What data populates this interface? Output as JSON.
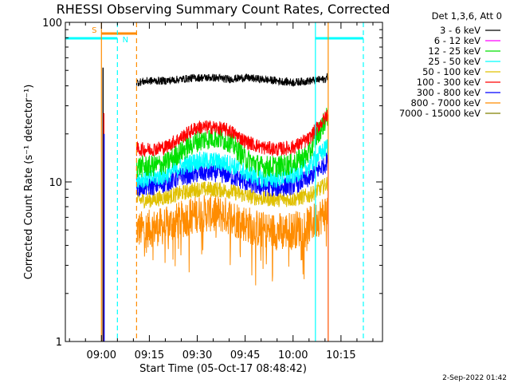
{
  "chart_data": {
    "type": "line",
    "title": "RHESSI Observing Summary Count Rates, Corrected",
    "xlabel": "Start Time (05-Oct-17 08:48:42)",
    "ylabel": "Corrected Count Rate (s⁻¹ detector⁻¹)",
    "yscale": "log",
    "ylim": [
      1,
      100
    ],
    "y_ticks": [
      {
        "value": 1,
        "label": "1"
      },
      {
        "value": 10,
        "label": "10"
      },
      {
        "value": 100,
        "label": "100"
      }
    ],
    "xlim": [
      "08:48:42",
      "10:28:00"
    ],
    "x_ticks": [
      {
        "time": "09:00",
        "label": "09:00"
      },
      {
        "time": "09:15",
        "label": "09:15"
      },
      {
        "time": "09:30",
        "label": "09:30"
      },
      {
        "time": "09:45",
        "label": "09:45"
      },
      {
        "time": "10:00",
        "label": "10:00"
      },
      {
        "time": "10:15",
        "label": "10:15"
      }
    ],
    "grid": false,
    "legend_header": "Det 1,3,6, Att 0",
    "legend_position": "top-right outside plot",
    "data_gap": {
      "start": "09:02",
      "end": "09:11"
    },
    "series": [
      {
        "name": "3 - 6 keV",
        "color": "#000000",
        "start": "09:11",
        "end": "10:11",
        "times": [
          "09:11",
          "09:15",
          "09:20",
          "09:25",
          "09:30",
          "09:35",
          "09:40",
          "09:45",
          "09:50",
          "09:55",
          "10:00",
          "10:05",
          "10:10",
          "10:11"
        ],
        "values": [
          42,
          43,
          43,
          44,
          45,
          45,
          44,
          45,
          44,
          43,
          42,
          43,
          44,
          46
        ]
      },
      {
        "name": "6 - 12 keV",
        "color": "#ff00ff",
        "start": "09:11",
        "end": "10:11",
        "times": [
          "09:11",
          "09:20",
          "09:30",
          "09:40",
          "09:50",
          "10:00",
          "10:10"
        ],
        "values": [
          0,
          0,
          0,
          0,
          0,
          0,
          0
        ]
      },
      {
        "name": "12 - 25 keV",
        "color": "#00e000",
        "start": "09:11",
        "end": "10:11",
        "times": [
          "09:11",
          "09:15",
          "09:20",
          "09:25",
          "09:30",
          "09:35",
          "09:40",
          "09:45",
          "09:50",
          "09:55",
          "10:00",
          "10:05",
          "10:10",
          "10:11"
        ],
        "values": [
          12.5,
          12.5,
          13,
          15.5,
          18,
          19,
          18,
          14,
          12.5,
          12.5,
          13,
          15,
          24,
          26
        ]
      },
      {
        "name": "25 - 50 keV",
        "color": "#00ffff",
        "start": "09:11",
        "end": "10:11",
        "times": [
          "09:11",
          "09:15",
          "09:20",
          "09:25",
          "09:30",
          "09:35",
          "09:40",
          "09:45",
          "09:50",
          "09:55",
          "10:00",
          "10:05",
          "10:10",
          "10:11"
        ],
        "values": [
          10.5,
          10.5,
          11,
          12.5,
          13.5,
          13.5,
          13,
          11.5,
          10.5,
          10.5,
          11,
          12.5,
          16,
          17
        ]
      },
      {
        "name": "50 - 100 keV",
        "color": "#e0c000",
        "start": "09:11",
        "end": "10:11",
        "times": [
          "09:11",
          "09:15",
          "09:20",
          "09:25",
          "09:30",
          "09:35",
          "09:40",
          "09:45",
          "09:50",
          "09:55",
          "10:00",
          "10:05",
          "10:10",
          "10:11"
        ],
        "values": [
          7.7,
          7.7,
          8,
          8.5,
          9,
          9,
          8.8,
          8.2,
          7.9,
          7.8,
          7.8,
          8.2,
          9.5,
          10
        ]
      },
      {
        "name": "100 - 300 keV",
        "color": "#ff0000",
        "start": "09:11",
        "end": "10:11",
        "times": [
          "09:11",
          "09:15",
          "09:20",
          "09:25",
          "09:30",
          "09:35",
          "09:40",
          "09:45",
          "09:50",
          "09:55",
          "10:00",
          "10:05",
          "10:10",
          "10:11"
        ],
        "values": [
          16,
          16,
          16.5,
          19,
          22,
          22,
          21,
          18,
          16.5,
          16,
          16.5,
          18.5,
          25,
          27
        ]
      },
      {
        "name": "300 - 800 keV",
        "color": "#0000ff",
        "start": "09:11",
        "end": "10:11",
        "times": [
          "09:11",
          "09:15",
          "09:20",
          "09:25",
          "09:30",
          "09:35",
          "09:40",
          "09:45",
          "09:50",
          "09:55",
          "10:00",
          "10:05",
          "10:10",
          "10:11"
        ],
        "values": [
          9.3,
          9.3,
          9.8,
          10.8,
          11.3,
          11.5,
          11,
          10,
          9.3,
          9.2,
          9.5,
          10.5,
          13,
          14
        ]
      },
      {
        "name": "800 - 7000 keV",
        "color": "#ff8c00",
        "start": "09:11",
        "end": "10:11",
        "times": [
          "09:11",
          "09:15",
          "09:20",
          "09:25",
          "09:30",
          "09:35",
          "09:40",
          "09:45",
          "09:50",
          "09:55",
          "10:00",
          "10:05",
          "10:10",
          "10:11"
        ],
        "values": [
          5,
          5.1,
          5.3,
          5.8,
          6.3,
          6.4,
          6.1,
          5.5,
          5,
          4.9,
          5,
          5.3,
          6.4,
          6.8
        ]
      },
      {
        "name": "7000 - 15000 keV",
        "color": "#808000",
        "start": "09:11",
        "end": "10:11",
        "times": [
          "09:11",
          "09:20",
          "09:30",
          "09:40",
          "09:50",
          "10:00",
          "10:10"
        ],
        "values": [
          0,
          0,
          0,
          0,
          0,
          0,
          0
        ]
      }
    ],
    "annotations": [
      {
        "kind": "saa-bar",
        "label": "S",
        "color": "#ff8c00",
        "start": "09:00",
        "end": "09:11"
      },
      {
        "kind": "night-bar",
        "label": "N",
        "color": "#00ffff",
        "start": "08:48:42",
        "end": "09:05"
      },
      {
        "kind": "night-bar",
        "label": "",
        "color": "#00ffff",
        "start": "10:07",
        "end": "10:22"
      },
      {
        "kind": "vline-solid",
        "color": "#ff8c00",
        "time": "09:00"
      },
      {
        "kind": "vline-dashed",
        "color": "#00ffff",
        "time": "09:05"
      },
      {
        "kind": "vline-dashed",
        "color": "#ff8c00",
        "time": "09:11"
      },
      {
        "kind": "vline-solid",
        "color": "#00ffff",
        "time": "10:07"
      },
      {
        "kind": "vline-solid",
        "color": "#ff8c00",
        "time": "10:11"
      },
      {
        "kind": "vline-dashed",
        "color": "#00ffff",
        "time": "10:22"
      }
    ],
    "datestamp": "2-Sep-2022 01:42"
  }
}
